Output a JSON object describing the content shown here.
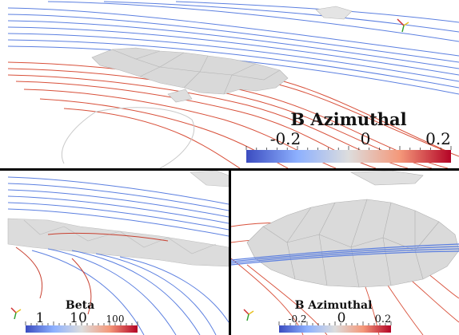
{
  "panels": [
    {
      "id": "top",
      "colorbar": {
        "title": "B Azimuthal",
        "tick_labels": [
          "-0.2",
          "0",
          "0.2"
        ],
        "range": [
          -0.25,
          0.25
        ],
        "ticks": [
          -0.2,
          0,
          0.2
        ]
      }
    },
    {
      "id": "bottom-left",
      "colorbar": {
        "title": "Beta",
        "tick_labels": [
          "1",
          "10",
          "100"
        ],
        "log_scale": true,
        "range": [
          0.5,
          300
        ],
        "ticks": [
          1,
          10,
          100
        ]
      }
    },
    {
      "id": "bottom-right",
      "colorbar": {
        "title": "B Azimuthal",
        "tick_labels": [
          "-0.2",
          "0",
          "0.2"
        ],
        "range": [
          -0.25,
          0.25
        ],
        "ticks": [
          -0.2,
          0,
          0.2
        ]
      }
    }
  ],
  "colors": {
    "blue": "#3b4cc0",
    "white": "#dddddd",
    "red": "#b40426",
    "line_blue": "#5b7fe0",
    "line_red": "#d8503a",
    "surface": "#d9d9d9",
    "surface_edge": "#b5b5b5"
  },
  "icons": [
    "orientation-axes-icon"
  ]
}
